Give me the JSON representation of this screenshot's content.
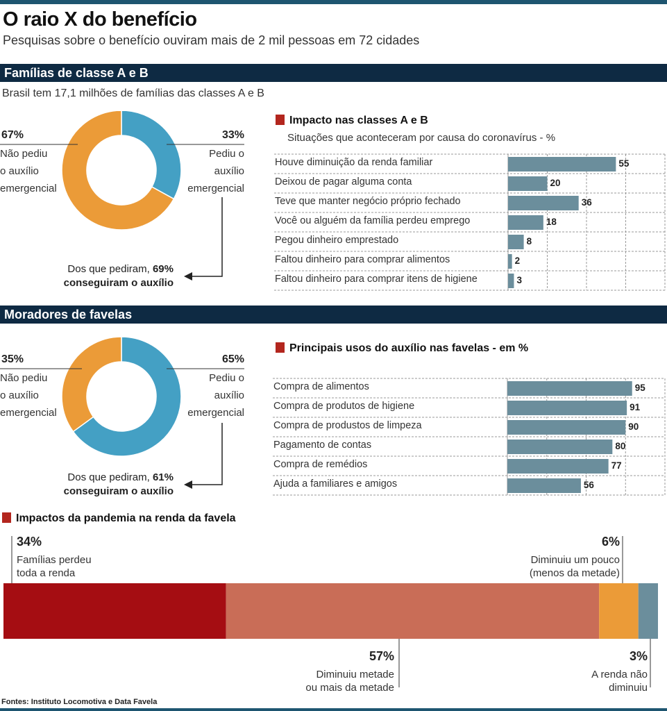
{
  "title": "O raio X do benefício",
  "subtitle": "Pesquisas sobre o benefício ouviram mais de 2 mil pessoas em 72 cidades",
  "section_ab": {
    "header": "Famílias de classe A e B",
    "note": "Brasil tem 17,1 milhões de famílias das classes A e B",
    "donut": {
      "left_pct": "67%",
      "left_label": [
        "Não pediu",
        "o auxílio",
        "emergencial"
      ],
      "right_pct": "33%",
      "right_label": [
        "Pediu o",
        "auxílio",
        "emergencial"
      ],
      "callout_prefix": "Dos que pediram,",
      "callout_pct": "69%",
      "callout_bold": "conseguiram o auxílio"
    },
    "panel_title": "Impacto nas classes A e B",
    "panel_subtitle": "Situações que aconteceram por causa do coronavírus - %"
  },
  "section_favela": {
    "header": "Moradores de favelas",
    "donut": {
      "left_pct": "35%",
      "left_label": [
        "Não pediu",
        "o auxílio",
        "emergencial"
      ],
      "right_pct": "65%",
      "right_label": [
        "Pediu o",
        "auxílio",
        "emergencial"
      ],
      "callout_prefix": "Dos que pediram,",
      "callout_pct": "61%",
      "callout_bold": "conseguiram o auxílio"
    },
    "panel_title": "Principais usos do auxílio nas favelas - em %"
  },
  "pandemic": {
    "title": "Impactos da pandemia na renda da favela",
    "seg1": {
      "pct": "34%",
      "label": [
        "Famílias perdeu",
        "toda a renda"
      ]
    },
    "seg2": {
      "pct": "57%",
      "label": [
        "Diminuiu metade",
        "ou mais da metade"
      ]
    },
    "seg3": {
      "pct": "6%",
      "label": [
        "Diminuiu um pouco",
        "(menos da metade)"
      ]
    },
    "seg4": {
      "pct": "3%",
      "label": [
        "A renda não",
        "diminuiu"
      ]
    }
  },
  "sources": "Fontes: Instituto Locomotiva e Data Favela",
  "colors": {
    "blue": "#44a0c4",
    "orange": "#eb9b38",
    "bar": "#6b8e9c",
    "dark_red": "#a50d12",
    "salmon": "#c96d57",
    "slate": "#6b8e9c"
  },
  "chart_data": [
    {
      "type": "pie",
      "title": "Famílias de classe A e B",
      "categories": [
        "Não pediu o auxílio emergencial",
        "Pediu o auxílio emergencial"
      ],
      "values": [
        67,
        33
      ]
    },
    {
      "type": "bar",
      "title": "Impacto nas classes A e B",
      "subtitle": "Situações que aconteceram por causa do coronavírus - %",
      "categories": [
        "Houve diminuição da renda familiar",
        "Deixou de pagar alguma conta",
        "Teve que manter negócio próprio fechado",
        "Você ou alguém da família perdeu emprego",
        "Pegou dinheiro emprestado",
        "Faltou dinheiro para comprar alimentos",
        "Faltou dinheiro para comprar itens de higiene"
      ],
      "values": [
        55,
        20,
        36,
        18,
        8,
        2,
        3
      ],
      "xlim": [
        0,
        80
      ]
    },
    {
      "type": "pie",
      "title": "Moradores de favelas",
      "categories": [
        "Não pediu o auxílio emergencial",
        "Pediu o auxílio emergencial"
      ],
      "values": [
        35,
        65
      ]
    },
    {
      "type": "bar",
      "title": "Principais usos do auxílio nas favelas - em %",
      "categories": [
        "Compra de alimentos",
        "Compra de produtos de higiene",
        "Compra de produstos de limpeza",
        "Pagamento de contas",
        "Compra de remédios",
        "Ajuda a familiares e amigos"
      ],
      "values": [
        95,
        91,
        90,
        80,
        77,
        56
      ],
      "xlim": [
        0,
        120
      ]
    },
    {
      "type": "bar",
      "title": "Impactos da pandemia na renda da favela",
      "categories": [
        "Famílias perdeu toda a renda",
        "Diminuiu metade ou mais da metade",
        "Diminuiu um pouco (menos da metade)",
        "A renda não diminuiu"
      ],
      "values": [
        34,
        57,
        6,
        3
      ]
    }
  ]
}
